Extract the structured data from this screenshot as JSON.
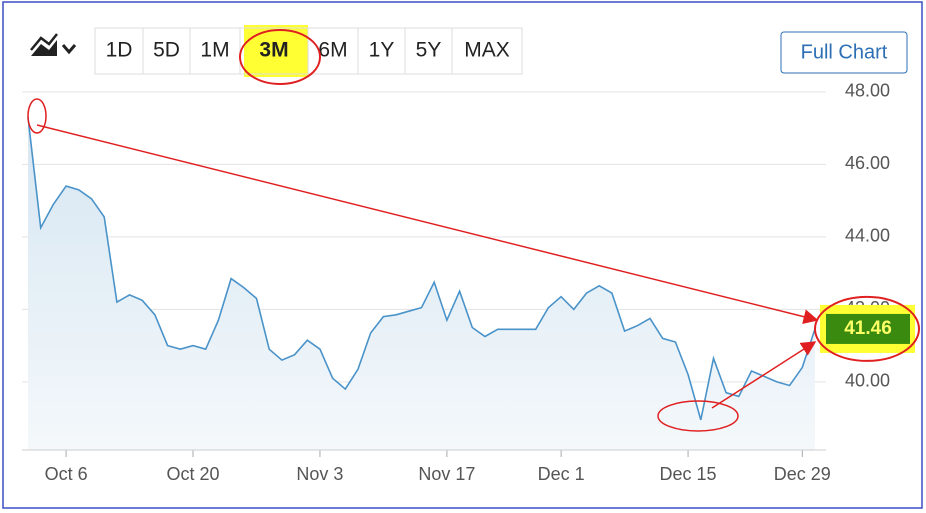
{
  "toolbar": {
    "ranges": [
      "1D",
      "5D",
      "1M",
      "3M",
      "6M",
      "1Y",
      "5Y",
      "MAX"
    ],
    "button": "Full Chart"
  },
  "chart_data": {
    "type": "line",
    "categories": [
      null,
      null,
      null,
      "Oct 6",
      null,
      null,
      null,
      null,
      null,
      null,
      null,
      null,
      null,
      "Oct 20",
      null,
      null,
      null,
      null,
      null,
      null,
      null,
      null,
      null,
      "Nov 3",
      null,
      null,
      null,
      null,
      null,
      null,
      null,
      null,
      null,
      "Nov 17",
      null,
      null,
      null,
      null,
      null,
      null,
      null,
      null,
      "Dec 1",
      null,
      null,
      null,
      null,
      null,
      null,
      null,
      null,
      null,
      "Dec 15",
      null,
      null,
      null,
      null,
      null,
      null,
      null,
      null,
      "Dec 29",
      null
    ],
    "series": [
      {
        "color": "#4a93c9",
        "values": [
          47.3,
          44.25,
          44.9,
          45.4,
          45.3,
          45.05,
          44.55,
          42.2,
          42.4,
          42.25,
          41.85,
          41.0,
          40.9,
          41.0,
          40.9,
          41.7,
          42.85,
          42.6,
          42.3,
          40.9,
          40.6,
          40.75,
          41.15,
          40.9,
          40.1,
          39.8,
          40.35,
          41.35,
          41.8,
          41.85,
          41.95,
          42.05,
          42.75,
          41.7,
          42.5,
          41.5,
          41.25,
          41.45,
          41.45,
          41.45,
          41.45,
          42.05,
          42.35,
          42.0,
          42.45,
          42.65,
          42.45,
          41.4,
          41.55,
          41.75,
          41.2,
          41.1,
          40.2,
          38.95,
          40.65,
          39.7,
          39.6,
          40.3,
          40.15,
          40.0,
          39.9,
          40.4,
          41.46
        ]
      }
    ],
    "last_value": 41.46,
    "ylim": [
      38.12,
      48.19
    ],
    "yticks": [
      {
        "value": 40,
        "label": "40.00"
      },
      {
        "value": 42,
        "label": "42.00"
      },
      {
        "value": 44,
        "label": "44.00"
      },
      {
        "value": 46,
        "label": "46.00"
      },
      {
        "value": 48,
        "label": "48.00"
      }
    ],
    "grid": true
  }
}
